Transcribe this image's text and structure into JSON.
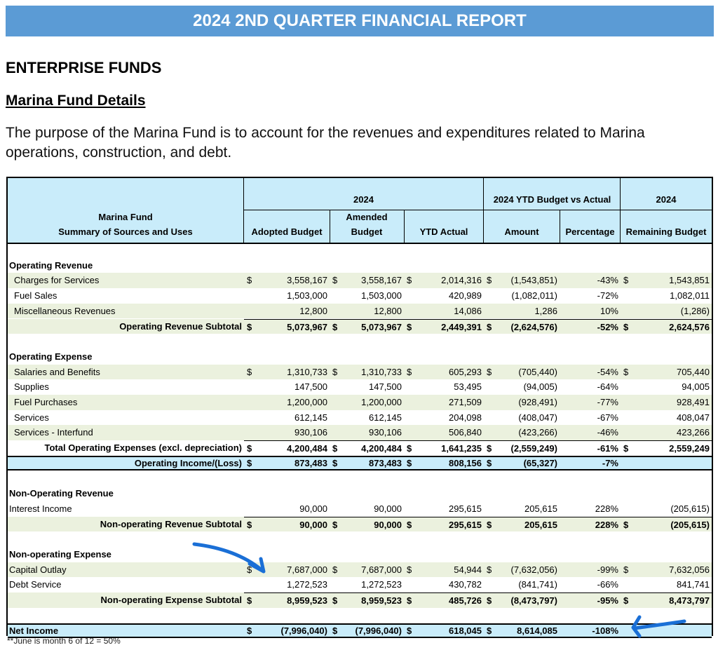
{
  "title": "2024 2ND QUARTER FINANCIAL REPORT",
  "section": "ENTERPRISE FUNDS",
  "subsection": "Marina Fund Details",
  "description": "The purpose of the Marina Fund is to account for the revenues and expenditures related to Marina operations, construction, and debt.",
  "table": {
    "header": {
      "row_label_1": "Marina Fund",
      "row_label_2": "Summary of Sources and Uses",
      "group_2024": "2024",
      "group_ytd": "2024 YTD Budget vs Actual",
      "group_remaining": "2024",
      "columns": [
        "Adopted Budget",
        "Amended Budget",
        "YTD Actual",
        "Amount",
        "Percentage",
        "Remaining Budget"
      ]
    },
    "rows": [
      {
        "label": "",
        "style": "blank"
      },
      {
        "label": "Operating Revenue",
        "style": "section"
      },
      {
        "label": "Charges for Services",
        "style": "item",
        "shade": "g",
        "dollar": [
          1,
          1,
          1,
          1,
          0,
          1
        ],
        "values": [
          "3,558,167",
          "3,558,167",
          "2,014,316",
          "(1,543,851)",
          "-43%",
          "1,543,851"
        ]
      },
      {
        "label": "Fuel Sales",
        "style": "item",
        "values": [
          "1,503,000",
          "1,503,000",
          "420,989",
          "(1,082,011)",
          "-72%",
          "1,082,011"
        ]
      },
      {
        "label": "Miscellaneous Revenues",
        "style": "item",
        "shade": "g",
        "values": [
          "12,800",
          "12,800",
          "14,086",
          "1,286",
          "10%",
          "(1,286)"
        ]
      },
      {
        "label": "Operating Revenue Subtotal",
        "style": "subtotal",
        "shade": "g",
        "dollar": [
          1,
          1,
          1,
          1,
          0,
          1
        ],
        "values": [
          "5,073,967",
          "5,073,967",
          "2,449,391",
          "(2,624,576)",
          "-52%",
          "2,624,576"
        ]
      },
      {
        "label": "",
        "style": "blank"
      },
      {
        "label": "Operating Expense",
        "style": "section"
      },
      {
        "label": "Salaries and Benefits",
        "style": "item",
        "shade": "g",
        "dollar": [
          1,
          1,
          1,
          1,
          0,
          1
        ],
        "values": [
          "1,310,733",
          "1,310,733",
          "605,293",
          "(705,440)",
          "-54%",
          "705,440"
        ]
      },
      {
        "label": "Supplies",
        "style": "item",
        "values": [
          "147,500",
          "147,500",
          "53,495",
          "(94,005)",
          "-64%",
          "94,005"
        ]
      },
      {
        "label": "Fuel Purchases",
        "style": "item",
        "shade": "g",
        "values": [
          "1,200,000",
          "1,200,000",
          "271,509",
          "(928,491)",
          "-77%",
          "928,491"
        ]
      },
      {
        "label": "Services",
        "style": "item",
        "values": [
          "612,145",
          "612,145",
          "204,098",
          "(408,047)",
          "-67%",
          "408,047"
        ]
      },
      {
        "label": "Services - Interfund",
        "style": "item",
        "shade": "g",
        "values": [
          "930,106",
          "930,106",
          "506,840",
          "(423,266)",
          "-46%",
          "423,266"
        ]
      },
      {
        "label": "Total Operating Expenses (excl. depreciation)",
        "style": "subtotal",
        "dollar": [
          1,
          1,
          1,
          1,
          0,
          1
        ],
        "values": [
          "4,200,484",
          "4,200,484",
          "1,641,235",
          "(2,559,249)",
          "-61%",
          "2,559,249"
        ]
      },
      {
        "label": "Operating Income/(Loss)",
        "style": "subtotal",
        "shade": "b",
        "dollar": [
          1,
          1,
          1,
          1,
          0,
          0
        ],
        "values": [
          "873,483",
          "873,483",
          "808,156",
          "(65,327)",
          "-7%",
          ""
        ]
      },
      {
        "label": "",
        "style": "blank"
      },
      {
        "label": "Non-Operating Revenue",
        "style": "section"
      },
      {
        "label": "Interest Income",
        "style": "plain",
        "values": [
          "90,000",
          "90,000",
          "295,615",
          "205,615",
          "228%",
          "(205,615)"
        ]
      },
      {
        "label": "Non-operating Revenue Subtotal",
        "style": "subtotal",
        "shade": "g",
        "dollar": [
          1,
          1,
          1,
          1,
          0,
          1
        ],
        "values": [
          "90,000",
          "90,000",
          "295,615",
          "205,615",
          "228%",
          "(205,615)"
        ]
      },
      {
        "label": "",
        "style": "blank"
      },
      {
        "label": "Non-operating Expense",
        "style": "section"
      },
      {
        "label": "Capital Outlay",
        "style": "plain",
        "shade": "g",
        "dollar": [
          1,
          1,
          1,
          1,
          0,
          1
        ],
        "values": [
          "7,687,000",
          "7,687,000",
          "54,944",
          "(7,632,056)",
          "-99%",
          "7,632,056"
        ]
      },
      {
        "label": "Debt Service",
        "style": "plain",
        "values": [
          "1,272,523",
          "1,272,523",
          "430,782",
          "(841,741)",
          "-66%",
          "841,741"
        ]
      },
      {
        "label": "Non-operating Expense Subtotal",
        "style": "subtotal",
        "shade": "g",
        "dollar": [
          1,
          1,
          1,
          1,
          0,
          1
        ],
        "values": [
          "8,959,523",
          "8,959,523",
          "485,726",
          "(8,473,797)",
          "-95%",
          "8,473,797"
        ]
      },
      {
        "label": "",
        "style": "blank"
      },
      {
        "label": "Net Income",
        "style": "net",
        "shade": "b",
        "dollar": [
          1,
          1,
          1,
          1,
          0,
          0
        ],
        "values": [
          "(7,996,040)",
          "(7,996,040)",
          "618,045",
          "8,614,085",
          "-108%",
          ""
        ]
      }
    ],
    "currency_symbol": "$"
  },
  "footnote": "**June is month 6 of 12 = 50%",
  "colors": {
    "title_bar": "#5b9bd5",
    "header_fill": "#c9ecfa",
    "row_shade": "#ebf1de",
    "annotation": "#1a6fd6"
  }
}
